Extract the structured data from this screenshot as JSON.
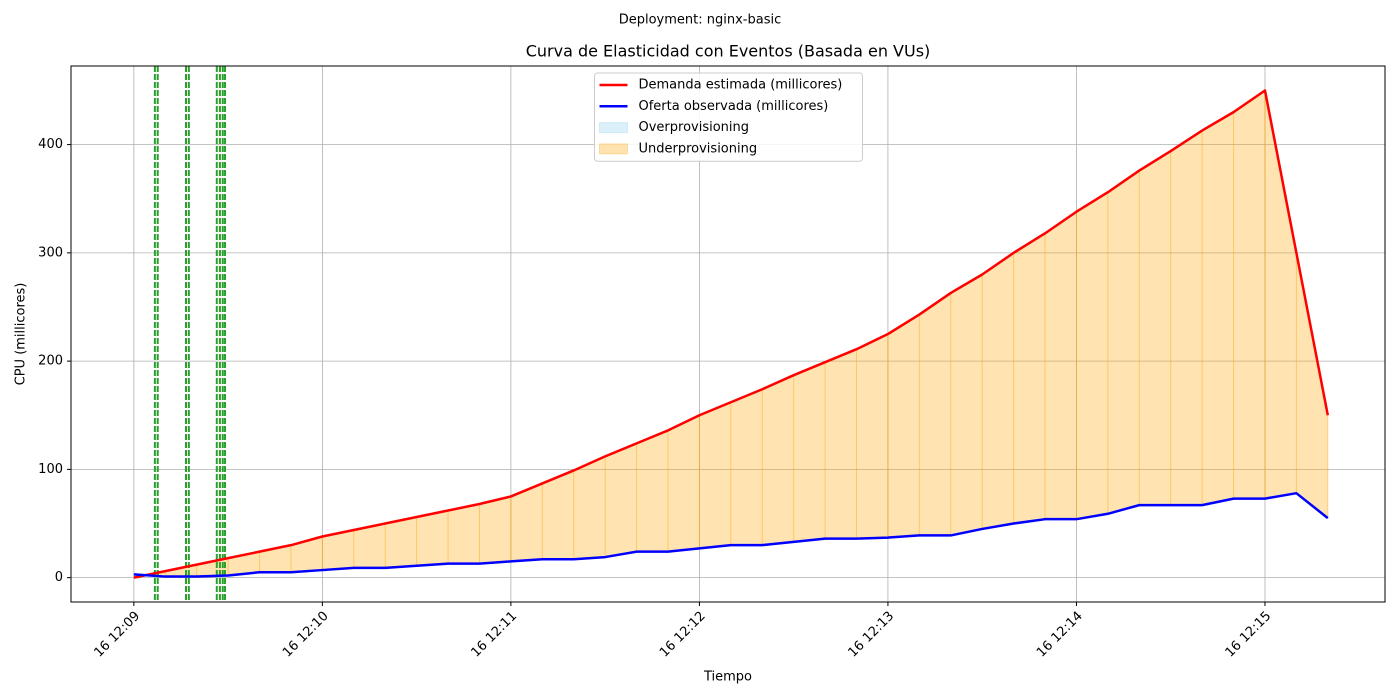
{
  "chart_data": {
    "type": "line",
    "suptitle": "Deployment: nginx-basic",
    "title": "Curva de Elasticidad con Eventos (Basada en VUs)",
    "xlabel": "Tiempo",
    "ylabel": "CPU (millicores)",
    "x": [
      "16 12:09:00",
      "16 12:09:10",
      "16 12:09:20",
      "16 12:09:30",
      "16 12:09:40",
      "16 12:09:50",
      "16 12:10:00",
      "16 12:10:10",
      "16 12:10:20",
      "16 12:10:30",
      "16 12:10:40",
      "16 12:10:50",
      "16 12:11:00",
      "16 12:11:10",
      "16 12:11:20",
      "16 12:11:30",
      "16 12:11:40",
      "16 12:11:50",
      "16 12:12:00",
      "16 12:12:10",
      "16 12:12:20",
      "16 12:12:30",
      "16 12:12:40",
      "16 12:12:50",
      "16 12:13:00",
      "16 12:13:10",
      "16 12:13:20",
      "16 12:13:30",
      "16 12:13:40",
      "16 12:13:50",
      "16 12:14:00",
      "16 12:14:10",
      "16 12:14:20",
      "16 12:14:30",
      "16 12:14:40",
      "16 12:14:50",
      "16 12:15:00",
      "16 12:15:10",
      "16 12:15:20"
    ],
    "series": [
      {
        "name": "Demanda estimada (millicores)",
        "color": "#ff0000",
        "values": [
          0,
          6,
          12,
          18,
          24,
          30,
          38,
          44,
          50,
          56,
          62,
          68,
          75,
          87,
          99,
          112,
          124,
          136,
          150,
          162,
          174,
          187,
          199,
          211,
          225,
          243,
          263,
          280,
          300,
          318,
          338,
          356,
          376,
          394,
          413,
          430,
          450,
          300,
          150
        ]
      },
      {
        "name": "Oferta observada (millicores)",
        "color": "#0000ff",
        "values": [
          3,
          1,
          1,
          2,
          5,
          5,
          7,
          9,
          9,
          11,
          13,
          13,
          15,
          17,
          17,
          19,
          24,
          24,
          27,
          30,
          30,
          33,
          36,
          36,
          37,
          39,
          39,
          45,
          50,
          54,
          54,
          59,
          67,
          67,
          67,
          73,
          73,
          78,
          55
        ]
      }
    ],
    "fills": [
      {
        "name": "Overprovisioning",
        "color": "#87ceeb"
      },
      {
        "name": "Underprovisioning",
        "color": "#ffa500"
      }
    ],
    "events": [
      "16 12:09:06.7",
      "16 12:09:07.6",
      "16 12:09:16.6",
      "16 12:09:17.5",
      "16 12:09:26.4",
      "16 12:09:27.4",
      "16 12:09:28.3",
      "16 12:09:29"
    ],
    "event_color": "#2ca02c",
    "xlim": [
      "16 12:08:40",
      "16 12:15:38.2"
    ],
    "xticks": [
      {
        "value": "16 12:09:00",
        "label": "16 12:09"
      },
      {
        "value": "16 12:10:00",
        "label": "16 12:10"
      },
      {
        "value": "16 12:11:00",
        "label": "16 12:11"
      },
      {
        "value": "16 12:12:00",
        "label": "16 12:12"
      },
      {
        "value": "16 12:13:00",
        "label": "16 12:13"
      },
      {
        "value": "16 12:14:00",
        "label": "16 12:14"
      },
      {
        "value": "16 12:15:00",
        "label": "16 12:15"
      }
    ],
    "ylim": [
      -22.5,
      472.6
    ],
    "yticks": [
      0,
      100,
      200,
      300,
      400
    ],
    "grid": true,
    "legend": "upper center"
  }
}
